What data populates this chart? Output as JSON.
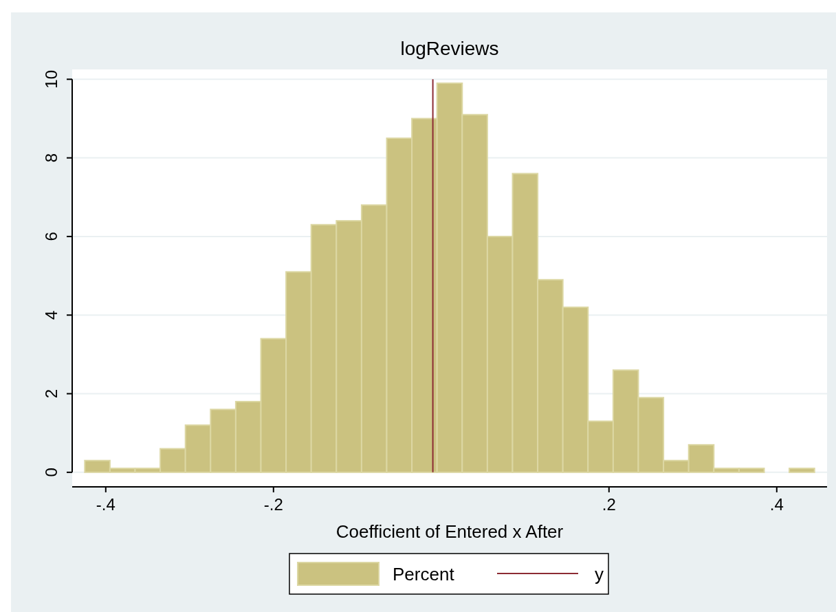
{
  "chart_data": {
    "type": "histogram",
    "title": "logReviews",
    "xlabel": "Coefficient of Entered x After",
    "bins": [
      -0.425,
      -0.395,
      -0.365,
      -0.335,
      -0.305,
      -0.275,
      -0.245,
      -0.215,
      -0.185,
      -0.155,
      -0.125,
      -0.095,
      -0.065,
      -0.035,
      -0.005,
      0.025,
      0.055,
      0.085,
      0.115,
      0.145,
      0.175,
      0.205,
      0.235,
      0.265,
      0.295,
      0.325,
      0.355,
      0.385,
      0.415,
      0.445
    ],
    "series": [
      {
        "name": "Percent",
        "color": "#cbc280",
        "values": [
          0.3,
          0.1,
          0.1,
          0.6,
          1.2,
          1.6,
          1.8,
          3.4,
          5.1,
          6.3,
          6.4,
          6.8,
          8.5,
          9.0,
          9.9,
          9.1,
          6.0,
          7.6,
          4.9,
          4.2,
          1.3,
          2.6,
          1.9,
          0.3,
          0.7,
          0.1,
          0.1,
          0,
          0.1
        ]
      }
    ],
    "ref_lines": [
      {
        "axis": "x",
        "value": -0.01,
        "label": "y",
        "color": "#8c2b33"
      }
    ],
    "xlim": [
      -0.44,
      0.46
    ],
    "xticks": [
      {
        "value": -0.4,
        "label": "-.4"
      },
      {
        "value": -0.2,
        "label": "-.2"
      },
      {
        "value": 0.2,
        "label": ".2"
      },
      {
        "value": 0.4,
        "label": ".4"
      }
    ],
    "ylim": [
      -0.37,
      10.25
    ],
    "yticks": [
      0,
      2,
      4,
      6,
      8,
      10
    ],
    "grid": "y",
    "legend": "bottom"
  }
}
